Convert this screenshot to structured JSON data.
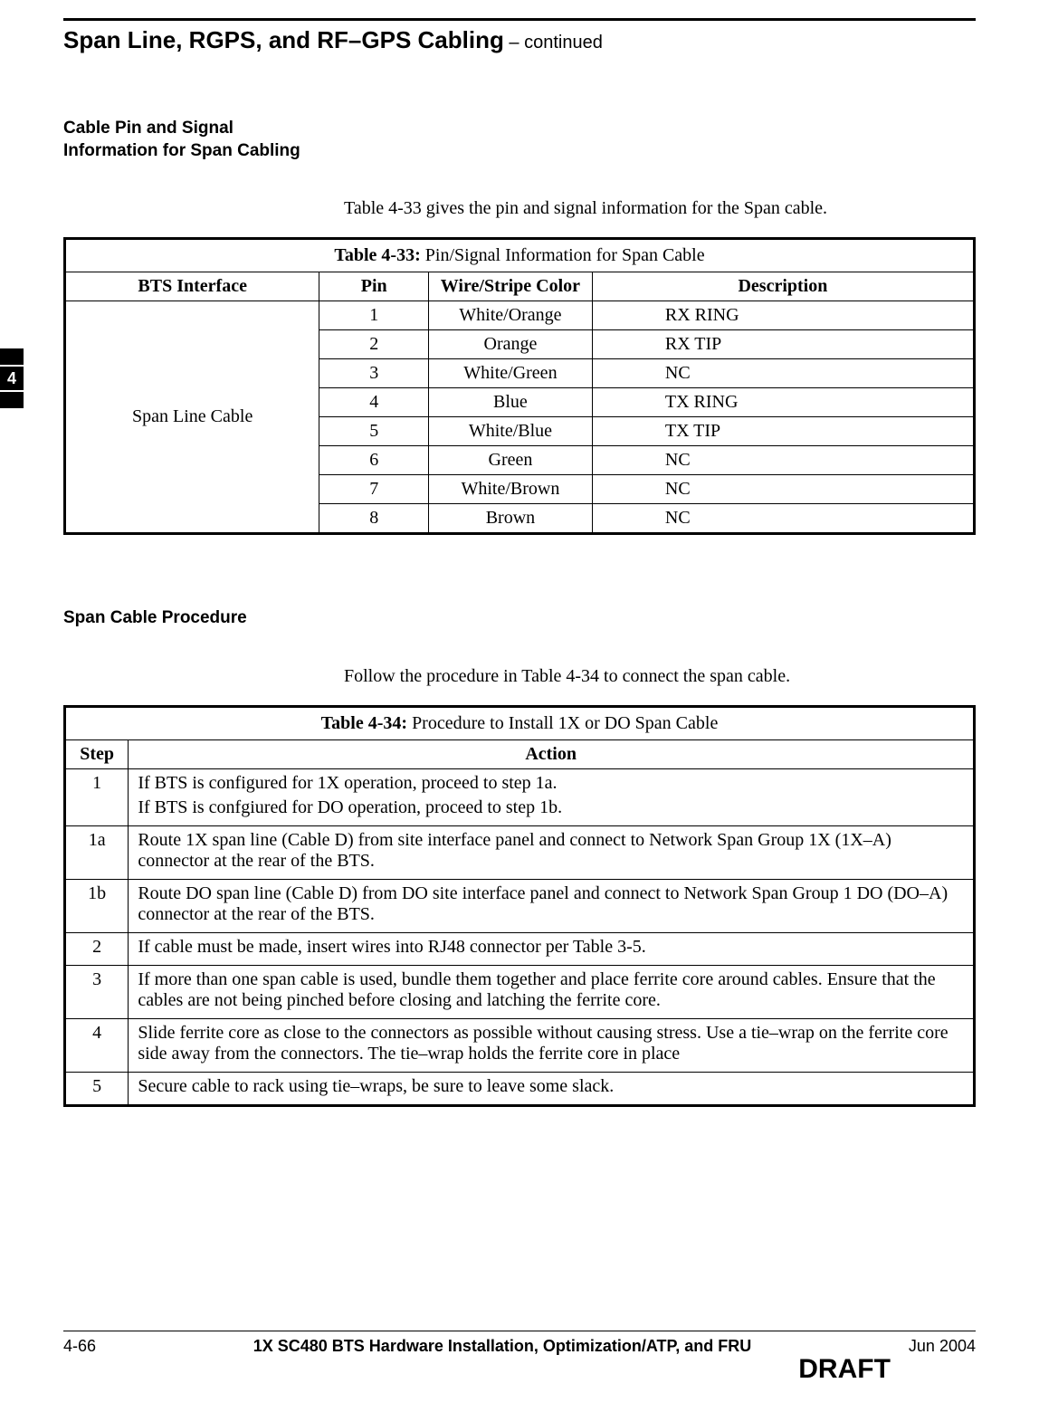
{
  "colors": {
    "text": "#000000",
    "background": "#ffffff",
    "rule": "#000000"
  },
  "header": {
    "title": "Span Line, RGPS, and RF–GPS Cabling",
    "continued": " – continued"
  },
  "tab": {
    "number": "4"
  },
  "section1": {
    "title_line1": "Cable Pin and Signal",
    "title_line2": "Information for Span Cabling",
    "intro": "Table 4-33 gives the pin and signal information for the Span cable."
  },
  "table33": {
    "label": "Table 4-33:",
    "caption": " Pin/Signal Information for Span Cable",
    "headers": {
      "iface": "BTS Interface",
      "pin": "Pin",
      "color": "Wire/Stripe Color",
      "desc": "Description"
    },
    "interface_label": "Span Line Cable",
    "rows": [
      {
        "pin": "1",
        "color": "White/Orange",
        "desc": "RX RING"
      },
      {
        "pin": "2",
        "color": "Orange",
        "desc": "RX TIP"
      },
      {
        "pin": "3",
        "color": "White/Green",
        "desc": "NC"
      },
      {
        "pin": "4",
        "color": "Blue",
        "desc": "TX RING"
      },
      {
        "pin": "5",
        "color": "White/Blue",
        "desc": "TX TIP"
      },
      {
        "pin": "6",
        "color": "Green",
        "desc": "NC"
      },
      {
        "pin": "7",
        "color": "White/Brown",
        "desc": "NC"
      },
      {
        "pin": "8",
        "color": "Brown",
        "desc": "NC"
      }
    ]
  },
  "section2": {
    "title": "Span Cable Procedure",
    "intro": "Follow the procedure in Table 4-34 to connect the span cable."
  },
  "table34": {
    "label": "Table 4-34:",
    "caption": " Procedure to Install 1X or DO Span Cable",
    "headers": {
      "step": "Step",
      "action": "Action"
    },
    "rows": [
      {
        "step": "1",
        "action_lines": [
          "If BTS is configured for 1X operation, proceed to step  1a.",
          "If BTS is confgiured for DO operation, proceed to step 1b."
        ]
      },
      {
        "step": "1a",
        "action_lines": [
          "Route 1X span line (Cable D) from site interface panel and connect to Network Span Group 1X (1X–A)  connector at the rear of the BTS."
        ]
      },
      {
        "step": "1b",
        "action_lines": [
          "Route DO span line (Cable D) from DO site interface panel and connect to Network Span Group 1 DO (DO–A) connector at the rear of the BTS."
        ]
      },
      {
        "step": "2",
        "action_lines": [
          "If cable must be made, insert wires into RJ48 connector per Table 3-5."
        ]
      },
      {
        "step": "3",
        "action_lines": [
          "If more than one span cable is used, bundle them together and place ferrite core around cables. Ensure that the cables are not being pinched before closing and latching the ferrite core."
        ]
      },
      {
        "step": "4",
        "action_lines": [
          "Slide ferrite core as close to the connectors as possible without causing stress. Use a tie–wrap on the ferrite core side away from the connectors. The tie–wrap holds the ferrite core in place"
        ]
      },
      {
        "step": "5",
        "action_lines": [
          "Secure cable to rack using tie–wraps, be sure to leave some slack."
        ]
      }
    ]
  },
  "footer": {
    "page": "4-66",
    "doc": "1X SC480 BTS Hardware Installation, Optimization/ATP, and FRU",
    "draft": "DRAFT",
    "date": "Jun 2004"
  }
}
